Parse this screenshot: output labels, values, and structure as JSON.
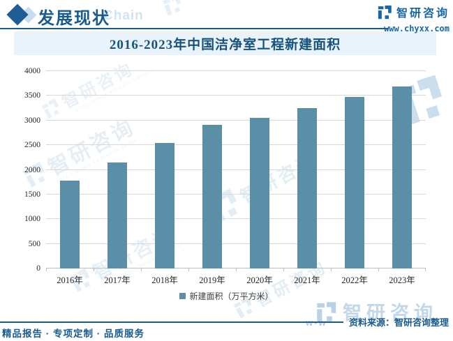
{
  "header": {
    "title": "发展现状",
    "title_watermark": "Chain",
    "brand_name": "智研咨询",
    "brand_url": "www.chyxx.com"
  },
  "chart_data": {
    "type": "bar",
    "title": "2016-2023年中国洁净室工程新建面积",
    "categories": [
      "2016年",
      "2017年",
      "2018年",
      "2019年",
      "2020年",
      "2021年",
      "2022年",
      "2023年"
    ],
    "series": [
      {
        "name": "新建面积（万平方米）",
        "values": [
          1775,
          2145,
          2545,
          2910,
          3050,
          3255,
          3480,
          3695
        ]
      }
    ],
    "xlabel": "",
    "ylabel": "",
    "ylim": [
      0,
      4000
    ],
    "ytick_step": 500,
    "grid": true,
    "legend_position": "bottom",
    "bar_color": "#5b8fa8"
  },
  "footer": {
    "source_label": "资料来源：智研咨询整理",
    "tagline": "精品报告 · 专项定制 · 品质服务",
    "url_fragment": "w-w"
  },
  "watermark": {
    "brand": "智研咨询",
    "brand_en": "INTELLIGENCE RESEARCH GROUP"
  },
  "colors": {
    "accent_blue": "#1a5b8d",
    "brand_blue": "#1766a6",
    "bar": "#5b8fa8",
    "banner_bg": "#e8f3fb",
    "gridline": "#d9d9d9",
    "watermark_blue": "#1a6fae"
  }
}
